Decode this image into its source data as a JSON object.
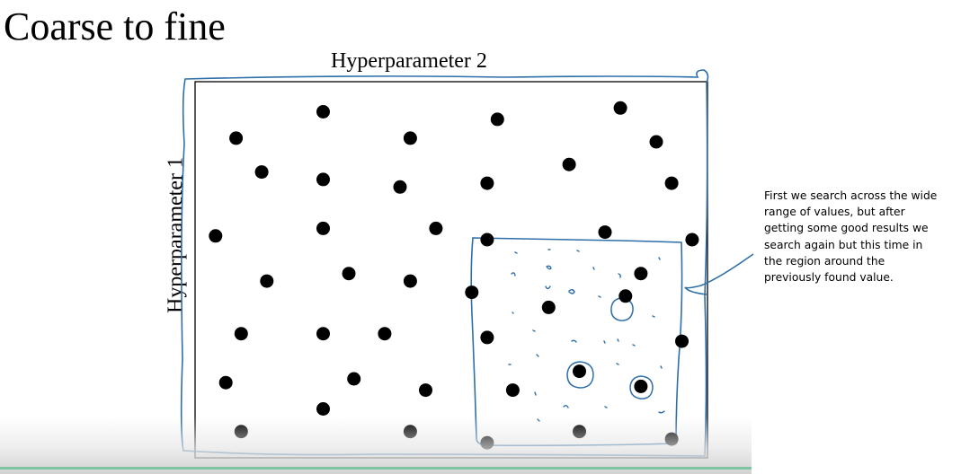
{
  "slide": {
    "title": "Coarse to fine",
    "x_axis_label": "Hyperparameter 2",
    "y_axis_label": "Hyperparameter 1"
  },
  "annotation": {
    "lines": [
      "First we search across the wide",
      "range of values, but after",
      "getting some good results we",
      "search again but this time in",
      "the region around the",
      "previously found value."
    ]
  },
  "colors": {
    "ink": "#000000",
    "pen": "#2e6fa8",
    "bottom_accent": "#7fc4a2"
  },
  "icons": {
    "grid_point": "filled-black-circle",
    "best_point_marker": "hand-drawn-circle",
    "fine_sample": "small-blue-pen-mark"
  },
  "chart_data": {
    "type": "scatter",
    "xlabel": "Hyperparameter 2",
    "ylabel": "Hyperparameter 1",
    "coarse_points": [
      [
        0.08,
        0.85
      ],
      [
        0.25,
        0.92
      ],
      [
        0.42,
        0.85
      ],
      [
        0.59,
        0.9
      ],
      [
        0.83,
        0.93
      ],
      [
        0.9,
        0.84
      ],
      [
        0.13,
        0.76
      ],
      [
        0.25,
        0.74
      ],
      [
        0.4,
        0.72
      ],
      [
        0.57,
        0.73
      ],
      [
        0.73,
        0.78
      ],
      [
        0.93,
        0.73
      ],
      [
        0.04,
        0.59
      ],
      [
        0.25,
        0.61
      ],
      [
        0.47,
        0.61
      ],
      [
        0.57,
        0.58
      ],
      [
        0.8,
        0.6
      ],
      [
        0.97,
        0.58
      ],
      [
        0.14,
        0.47
      ],
      [
        0.3,
        0.49
      ],
      [
        0.42,
        0.47
      ],
      [
        0.54,
        0.44
      ],
      [
        0.69,
        0.4
      ],
      [
        0.87,
        0.49
      ],
      [
        0.09,
        0.33
      ],
      [
        0.25,
        0.33
      ],
      [
        0.37,
        0.33
      ],
      [
        0.57,
        0.32
      ],
      [
        0.95,
        0.31
      ],
      [
        0.06,
        0.2
      ],
      [
        0.31,
        0.21
      ],
      [
        0.45,
        0.18
      ],
      [
        0.25,
        0.13
      ],
      [
        0.62,
        0.18
      ],
      [
        0.09,
        0.07
      ],
      [
        0.42,
        0.07
      ],
      [
        0.57,
        0.04
      ],
      [
        0.75,
        0.07
      ],
      [
        0.93,
        0.05
      ]
    ],
    "fine_region": {
      "x": [
        0.54,
        0.95
      ],
      "y": [
        0.0,
        0.6
      ]
    },
    "best_points": [
      [
        0.84,
        0.43
      ],
      [
        0.75,
        0.23
      ],
      [
        0.87,
        0.19
      ]
    ]
  }
}
